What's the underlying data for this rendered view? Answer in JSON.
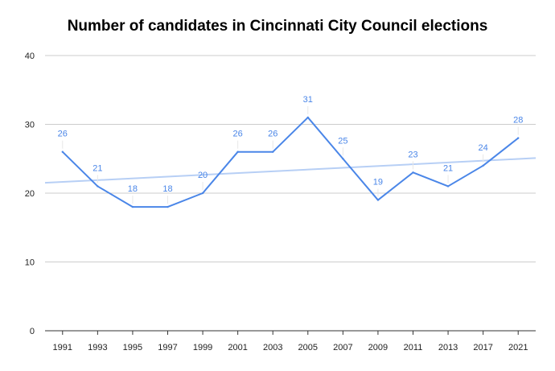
{
  "chart_data": {
    "type": "line",
    "title": "Number of candidates in Cincinnati City Council elections",
    "xlabel": "",
    "ylabel": "",
    "categories": [
      "1991",
      "1993",
      "1995",
      "1997",
      "1999",
      "2001",
      "2003",
      "2005",
      "2007",
      "2009",
      "2011",
      "2013",
      "2017",
      "2021"
    ],
    "series": [
      {
        "values": [
          26,
          21,
          18,
          18,
          20,
          26,
          26,
          31,
          25,
          19,
          23,
          21,
          24,
          28
        ],
        "color": "#4a86e8"
      }
    ],
    "trendline": {
      "start": 21.5,
      "end": 25.1,
      "color": "#b7cff5"
    },
    "yticks": [
      0,
      10,
      20,
      30,
      40
    ],
    "ylim": [
      0,
      40
    ],
    "grid": true,
    "legend": "none",
    "data_labels": true
  }
}
